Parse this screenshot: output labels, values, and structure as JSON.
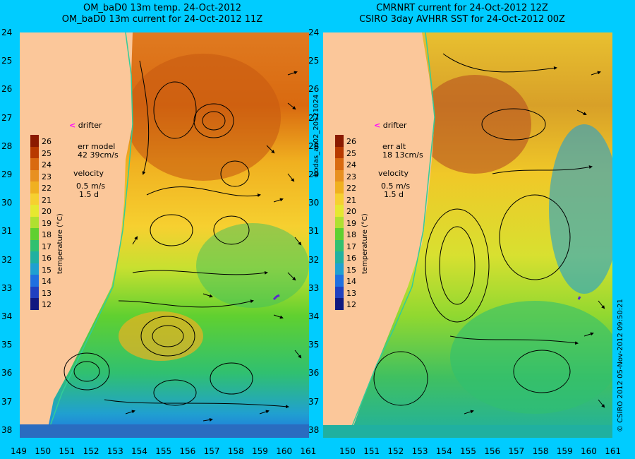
{
  "panels": [
    {
      "title_line1": "OM_baD0 13m temp. 24-Oct-2012",
      "title_line2": "OM_baD0 13m current for 24-Oct-2012 11Z",
      "drifter_label": "drifter",
      "err_label": "err model",
      "err_value": "42 39cm/s",
      "velocity_label": "velocity",
      "velocity_scale": "0.5 m/s",
      "velocity_duration": "1.5 d",
      "colorbar_title": "temperature (°C)"
    },
    {
      "title_line1": "CMRNRT current for 24-Oct-2012 12Z",
      "title_line2": "CSIRO 3day AVHRR SST for 24-Oct-2012 00Z",
      "drifter_label": "drifter",
      "err_label": "err alt",
      "err_value": "18 13cm/s",
      "velocity_label": "velocity",
      "velocity_scale": "0.5 m/s",
      "velocity_duration": "1.5 d",
      "colorbar_title": "temperature (°C)"
    }
  ],
  "y_ticks": [
    "24",
    "25",
    "26",
    "27",
    "28",
    "29",
    "30",
    "31",
    "32",
    "33",
    "34",
    "35",
    "36",
    "37",
    "38"
  ],
  "x_ticks_left": [
    "149",
    "150",
    "151",
    "152",
    "153",
    "154",
    "155",
    "156",
    "157",
    "158",
    "159",
    "160",
    "161"
  ],
  "x_ticks_right": [
    "150",
    "151",
    "152",
    "153",
    "154",
    "155",
    "156",
    "157",
    "158",
    "159",
    "160",
    "161"
  ],
  "colorbar_ticks": [
    "26",
    "25",
    "24",
    "23",
    "22",
    "21",
    "20",
    "19",
    "18",
    "17",
    "16",
    "15",
    "14",
    "13",
    "12"
  ],
  "colorbar_colors": [
    "#8b1a00",
    "#b83a00",
    "#d96a10",
    "#e89020",
    "#f0b020",
    "#f6d030",
    "#e6e830",
    "#b0e030",
    "#60d030",
    "#30c070",
    "#20b0a0",
    "#20a0d0",
    "#2070e0",
    "#2040c0",
    "#101880"
  ],
  "side_label_middle": "bodas_an02_20121024",
  "side_label_right": "© CSIRO 2012   05-Nov-2012 09:50:21",
  "colors": {
    "background": "#00ccff",
    "land": "#fbc79a",
    "coastline": "#33cc99",
    "drifter": "#ff00ff"
  }
}
